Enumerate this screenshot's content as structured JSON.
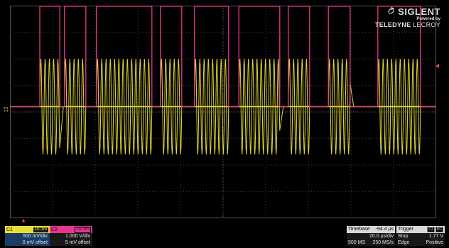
{
  "logo": {
    "brand": "SIGLENT",
    "powered_by": "Powered by",
    "teledyne": "TELEDYNE",
    "lecroy": "LECROY"
  },
  "ch1": {
    "label": "C1",
    "coupling": "DC1M",
    "scale": "500 mV/div",
    "offset": "0 mV offset",
    "color": "#eae035"
  },
  "ch2": {
    "label": "C2",
    "coupling": "DC1M",
    "scale": "1.000 V/div",
    "offset": "5 mV offset",
    "color": "#e8368f"
  },
  "timebase": {
    "label": "Timebase",
    "delay": "-94.4 µs",
    "scale": "20.0 µs/div",
    "memory": "500 MS",
    "sample_rate": "250 MS/s"
  },
  "trigger": {
    "label": "Trigger",
    "source_tag": "C2",
    "coupling_tag": "DC",
    "state": "Stop",
    "level": "1.77 V",
    "type": "Edge",
    "slope": "Positive"
  },
  "ch1_ground_label": "12",
  "display": {
    "h_divisions": 10,
    "v_divisions": 8,
    "grid_color": "#3a3a3a",
    "ch2_bursts": [
      [
        0.7,
        1.17
      ],
      [
        1.28,
        1.78
      ],
      [
        2.03,
        3.33
      ],
      [
        3.53,
        4.03
      ],
      [
        4.33,
        5.13
      ],
      [
        5.37,
        6.33
      ],
      [
        6.53,
        7.03
      ],
      [
        7.47,
        7.98
      ],
      [
        8.63,
        9.63
      ]
    ],
    "ch2_high_div": 3.8,
    "ch2_low_div": 0,
    "ch1_amplitude_div": 1.8,
    "ch1_cycles_per_div": 10,
    "baseline_div_from_top": 3.8
  }
}
